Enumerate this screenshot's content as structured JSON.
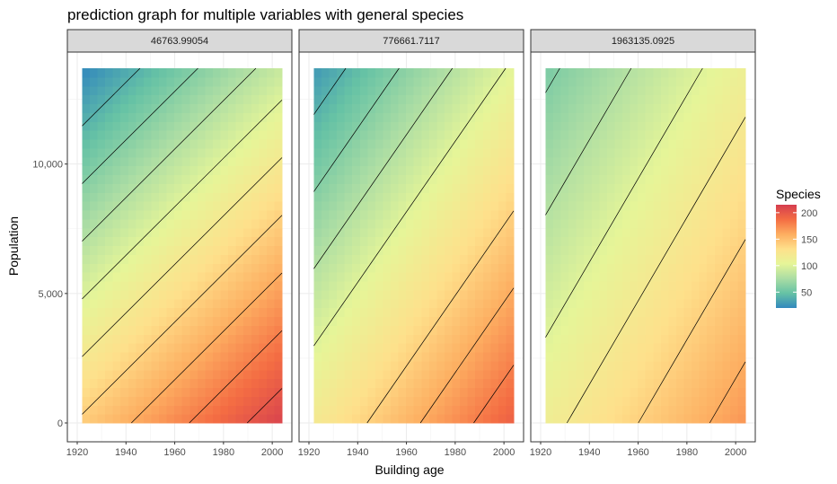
{
  "chart_data": {
    "type": "heatmap",
    "title": "prediction graph for multiple variables with general species",
    "xlabel": "Building age",
    "ylabel": "Population",
    "xlim": [
      1920,
      2004
    ],
    "ylim": [
      0,
      13700
    ],
    "x_ticks": [
      1920,
      1940,
      1960,
      1980,
      2000
    ],
    "x_tick_labels": [
      "1920",
      "1940",
      "1960",
      "1980",
      "2000"
    ],
    "y_ticks": [
      0,
      5000,
      10000
    ],
    "y_tick_labels": [
      "0",
      "5,000",
      "10,000"
    ],
    "grid": true,
    "legend": {
      "title": "Species",
      "placement": "right",
      "range": [
        20,
        215
      ],
      "ticks": [
        50,
        100,
        150,
        200
      ],
      "tick_labels": [
        "50",
        "100",
        "150",
        "200"
      ],
      "colors": [
        "#3288bd",
        "#66c2a5",
        "#abdda4",
        "#e6f598",
        "#fee08b",
        "#fdae61",
        "#f46d43",
        "#d53e4f"
      ]
    },
    "contour_interval": 20,
    "facets": [
      {
        "label": "46763.99054",
        "corners": {
          "x1922_y0": 143,
          "x2004_y0": 212,
          "x1922_y13700": 20,
          "x2004_y13700": 88
        }
      },
      {
        "label": "776661.7117",
        "corners": {
          "x1922_y0": 120,
          "x2004_y0": 195,
          "x1922_y13700": 28,
          "x2004_y13700": 103
        }
      },
      {
        "label": "1963135.0925",
        "corners": {
          "x1922_y0": 114,
          "x2004_y0": 170,
          "x1922_y13700": 56,
          "x2004_y13700": 110
        }
      }
    ]
  }
}
